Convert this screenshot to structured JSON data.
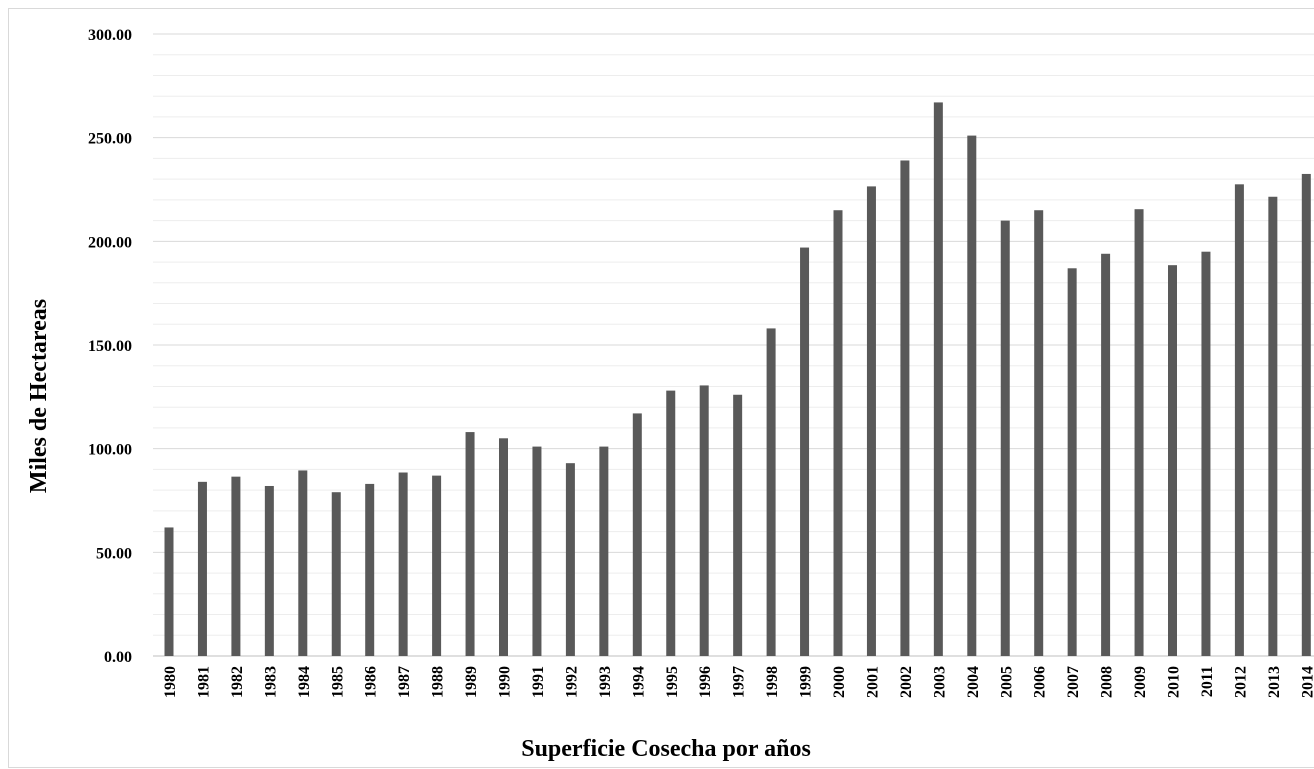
{
  "chart_data": {
    "type": "bar",
    "title": "",
    "xlabel": "Superficie Cosecha por años",
    "ylabel": "Miles de Hectareas",
    "ylim": [
      0,
      300
    ],
    "y_ticks": [
      "0.00",
      "50.00",
      "100.00",
      "150.00",
      "200.00",
      "250.00",
      "300.00"
    ],
    "y_tick_values": [
      0,
      50,
      100,
      150,
      200,
      250,
      300
    ],
    "grid": true,
    "minor_grid": true,
    "legend": "none",
    "bar_color": "#595959",
    "categories": [
      "1980",
      "1981",
      "1982",
      "1983",
      "1984",
      "1985",
      "1986",
      "1987",
      "1988",
      "1989",
      "1990",
      "1991",
      "1992",
      "1993",
      "1994",
      "1995",
      "1996",
      "1997",
      "1998",
      "1999",
      "2000",
      "2001",
      "2002",
      "2003",
      "2004",
      "2005",
      "2006",
      "2007",
      "2008",
      "2009",
      "2010",
      "2011",
      "2012",
      "2013",
      "2014"
    ],
    "values": [
      62,
      84,
      86.5,
      82,
      89.5,
      79,
      83,
      88.5,
      87,
      108,
      105,
      101,
      93,
      101,
      117,
      128,
      130.5,
      126,
      158,
      197,
      215,
      226.5,
      239,
      267,
      251,
      210,
      215,
      187,
      194,
      215.5,
      188.5,
      195,
      227.5,
      221.5,
      232.5
    ]
  }
}
